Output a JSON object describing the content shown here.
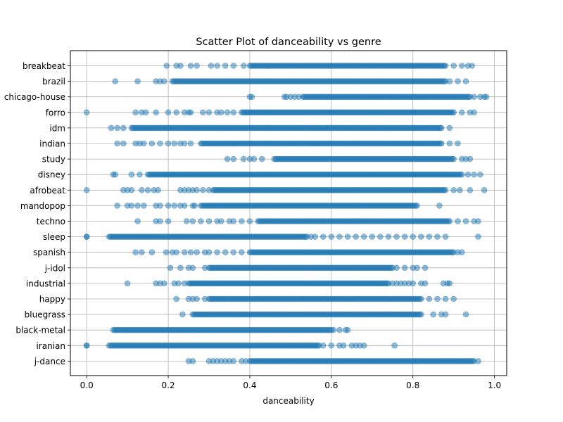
{
  "chart_data": {
    "type": "scatter",
    "title": "Scatter Plot of danceability vs genre",
    "xlabel": "danceability",
    "ylabel": "",
    "xlim": [
      -0.04,
      1.03
    ],
    "x_ticks": [
      "0.0",
      "0.2",
      "0.4",
      "0.6",
      "0.8",
      "1.0"
    ],
    "x_tick_values": [
      0.0,
      0.2,
      0.4,
      0.6,
      0.8,
      1.0
    ],
    "grid": true,
    "legend": "none",
    "marker_color": "#1f77b4",
    "marker_alpha": 0.5,
    "categories": [
      "breakbeat",
      "brazil",
      "chicago-house",
      "forro",
      "idm",
      "indian",
      "study",
      "disney",
      "afrobeat",
      "mandopop",
      "techno",
      "sleep",
      "spanish",
      "j-idol",
      "industrial",
      "happy",
      "bluegrass",
      "black-metal",
      "iranian",
      "j-dance"
    ],
    "series": [
      {
        "genre": "breakbeat",
        "dense_range": [
          0.4,
          0.88
        ],
        "points": [
          0.196,
          0.22,
          0.23,
          0.255,
          0.27,
          0.305,
          0.32,
          0.34,
          0.36,
          0.385,
          0.9,
          0.92,
          0.935,
          0.945
        ]
      },
      {
        "genre": "brazil",
        "dense_range": [
          0.21,
          0.88
        ],
        "points": [
          0.07,
          0.125,
          0.17,
          0.18,
          0.19,
          0.89,
          0.91,
          0.93
        ]
      },
      {
        "genre": "chicago-house",
        "dense_range": [
          0.53,
          0.94
        ],
        "points": [
          0.4,
          0.405,
          0.485,
          0.49,
          0.5,
          0.51,
          0.52,
          0.95,
          0.965,
          0.975,
          0.98
        ]
      },
      {
        "genre": "forro",
        "dense_range": [
          0.38,
          0.9
        ],
        "points": [
          0.0,
          0.12,
          0.135,
          0.145,
          0.17,
          0.2,
          0.22,
          0.24,
          0.25,
          0.255,
          0.285,
          0.3,
          0.32,
          0.33,
          0.345,
          0.36,
          0.92,
          0.94,
          0.95
        ]
      },
      {
        "genre": "idm",
        "dense_range": [
          0.11,
          0.87
        ],
        "points": [
          0.06,
          0.075,
          0.09,
          0.89
        ]
      },
      {
        "genre": "indian",
        "dense_range": [
          0.28,
          0.87
        ],
        "points": [
          0.075,
          0.09,
          0.12,
          0.13,
          0.14,
          0.16,
          0.18,
          0.2,
          0.215,
          0.23,
          0.24,
          0.255,
          0.89,
          0.91
        ]
      },
      {
        "genre": "study",
        "dense_range": [
          0.46,
          0.9
        ],
        "points": [
          0.345,
          0.36,
          0.385,
          0.4,
          0.41,
          0.43,
          0.92,
          0.93,
          0.94
        ]
      },
      {
        "genre": "disney",
        "dense_range": [
          0.15,
          0.92
        ],
        "points": [
          0.065,
          0.07,
          0.11,
          0.13,
          0.935,
          0.95,
          0.965
        ]
      },
      {
        "genre": "afrobeat",
        "dense_range": [
          0.31,
          0.88
        ],
        "points": [
          0.0,
          0.09,
          0.1,
          0.11,
          0.135,
          0.15,
          0.165,
          0.175,
          0.23,
          0.24,
          0.25,
          0.26,
          0.27,
          0.285,
          0.3,
          0.9,
          0.915,
          0.94,
          0.975
        ]
      },
      {
        "genre": "mandopop",
        "dense_range": [
          0.28,
          0.81
        ],
        "points": [
          0.075,
          0.1,
          0.11,
          0.125,
          0.14,
          0.17,
          0.18,
          0.2,
          0.215,
          0.23,
          0.24,
          0.26,
          0.265,
          0.865
        ]
      },
      {
        "genre": "techno",
        "dense_range": [
          0.42,
          0.89
        ],
        "points": [
          0.125,
          0.17,
          0.18,
          0.2,
          0.245,
          0.26,
          0.28,
          0.3,
          0.32,
          0.33,
          0.35,
          0.36,
          0.38,
          0.4,
          0.91,
          0.93,
          0.95,
          0.96
        ]
      },
      {
        "genre": "sleep",
        "dense_range": [
          0.055,
          0.54
        ],
        "points": [
          0.0,
          0.0,
          0.55,
          0.56,
          0.58,
          0.6,
          0.62,
          0.64,
          0.66,
          0.68,
          0.7,
          0.72,
          0.74,
          0.76,
          0.78,
          0.8,
          0.82,
          0.84,
          0.86,
          0.88,
          0.96
        ]
      },
      {
        "genre": "spanish",
        "dense_range": [
          0.4,
          0.9
        ],
        "points": [
          0.12,
          0.135,
          0.16,
          0.195,
          0.21,
          0.22,
          0.24,
          0.255,
          0.27,
          0.29,
          0.3,
          0.32,
          0.34,
          0.36,
          0.38,
          0.91,
          0.92
        ]
      },
      {
        "genre": "j-idol",
        "dense_range": [
          0.3,
          0.75
        ],
        "points": [
          0.205,
          0.23,
          0.25,
          0.26,
          0.29,
          0.76,
          0.78,
          0.8,
          0.81,
          0.83
        ]
      },
      {
        "genre": "industrial",
        "dense_range": [
          0.25,
          0.74
        ],
        "points": [
          0.1,
          0.17,
          0.18,
          0.19,
          0.215,
          0.225,
          0.24,
          0.75,
          0.76,
          0.77,
          0.78,
          0.79,
          0.8,
          0.82,
          0.83,
          0.875,
          0.885,
          0.89
        ]
      },
      {
        "genre": "happy",
        "dense_range": [
          0.3,
          0.82
        ],
        "points": [
          0.22,
          0.25,
          0.26,
          0.27,
          0.29,
          0.84,
          0.86,
          0.88,
          0.9
        ]
      },
      {
        "genre": "bluegrass",
        "dense_range": [
          0.26,
          0.82
        ],
        "points": [
          0.235,
          0.85,
          0.87,
          0.88,
          0.93
        ]
      },
      {
        "genre": "black-metal",
        "dense_range": [
          0.065,
          0.6
        ],
        "points": [
          0.605,
          0.62,
          0.635,
          0.64
        ]
      },
      {
        "genre": "iranian",
        "dense_range": [
          0.055,
          0.57
        ],
        "points": [
          0.0,
          0.0,
          0.58,
          0.6,
          0.62,
          0.63,
          0.65,
          0.66,
          0.67,
          0.68,
          0.755
        ]
      },
      {
        "genre": "j-dance",
        "dense_range": [
          0.4,
          0.95
        ],
        "points": [
          0.25,
          0.26,
          0.3,
          0.31,
          0.32,
          0.33,
          0.34,
          0.35,
          0.36,
          0.38,
          0.39,
          0.96
        ]
      }
    ]
  }
}
